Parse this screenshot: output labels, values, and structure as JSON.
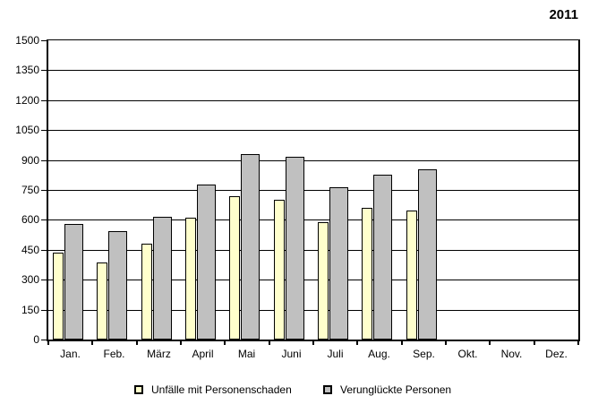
{
  "title": "2011",
  "chart_data": {
    "type": "bar",
    "title": "2011",
    "xlabel": "",
    "ylabel": "",
    "categories": [
      "Jan.",
      "Feb.",
      "März",
      "April",
      "Mai",
      "Juni",
      "Juli",
      "Aug.",
      "Sep.",
      "Okt.",
      "Nov.",
      "Dez."
    ],
    "series": [
      {
        "name": "Unfälle mit Personenschaden",
        "color": "#FFFFCC",
        "values": [
          435,
          385,
          480,
          610,
          720,
          700,
          590,
          660,
          645,
          null,
          null,
          null
        ]
      },
      {
        "name": "Verunglückte Personen",
        "color": "#C0C0C0",
        "values": [
          580,
          545,
          615,
          775,
          930,
          915,
          765,
          825,
          855,
          null,
          null,
          null
        ]
      }
    ],
    "ylim": [
      0,
      1500
    ],
    "ytick_step": 150,
    "yticks": [
      0,
      150,
      300,
      450,
      600,
      750,
      900,
      1050,
      1200,
      1350,
      1500
    ],
    "grid": true,
    "legend_position": "bottom"
  }
}
